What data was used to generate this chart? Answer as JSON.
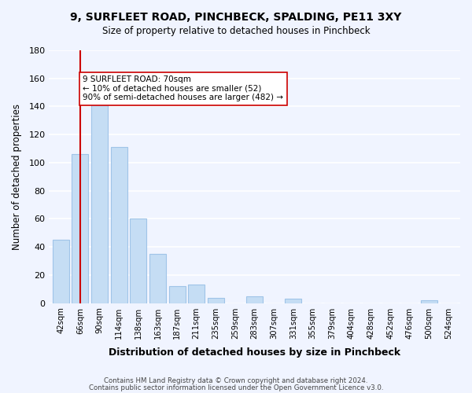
{
  "title": "9, SURFLEET ROAD, PINCHBECK, SPALDING, PE11 3XY",
  "subtitle": "Size of property relative to detached houses in Pinchbeck",
  "xlabel": "Distribution of detached houses by size in Pinchbeck",
  "ylabel": "Number of detached properties",
  "bar_labels": [
    "42sqm",
    "66sqm",
    "90sqm",
    "114sqm",
    "138sqm",
    "163sqm",
    "187sqm",
    "211sqm",
    "235sqm",
    "259sqm",
    "283sqm",
    "307sqm",
    "331sqm",
    "355sqm",
    "379sqm",
    "404sqm",
    "428sqm",
    "452sqm",
    "476sqm",
    "500sqm",
    "524sqm"
  ],
  "bar_values": [
    45,
    106,
    144,
    111,
    60,
    35,
    12,
    13,
    4,
    0,
    5,
    0,
    3,
    0,
    0,
    0,
    0,
    0,
    0,
    2,
    0
  ],
  "bar_color": "#c5ddf4",
  "bar_edge_color": "#a0c4e8",
  "vline_x": 1,
  "vline_color": "#cc0000",
  "annotation_text": "9 SURFLEET ROAD: 70sqm\n← 10% of detached houses are smaller (52)\n90% of semi-detached houses are larger (482) →",
  "annotation_box_color": "#ffffff",
  "annotation_box_edge": "#cc0000",
  "ylim": [
    0,
    180
  ],
  "yticks": [
    0,
    20,
    40,
    60,
    80,
    100,
    120,
    140,
    160,
    180
  ],
  "background_color": "#f0f4ff",
  "grid_color": "#ffffff",
  "footer_line1": "Contains HM Land Registry data © Crown copyright and database right 2024.",
  "footer_line2": "Contains public sector information licensed under the Open Government Licence v3.0."
}
